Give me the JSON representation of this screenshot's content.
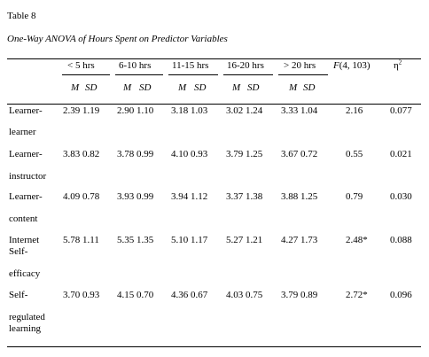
{
  "table": {
    "label": "Table 8",
    "caption": "One-Way ANOVA of Hours Spent on Predictor Variables",
    "groups": [
      "< 5 hrs",
      "6-10 hrs",
      "11-15 hrs",
      "16-20 hrs",
      "> 20 hrs"
    ],
    "f_header_italic": "F",
    "f_header_rest": "(4, 103)",
    "eta_header_symbol": "η",
    "eta_header_sup": "2",
    "sub_m": "M",
    "sub_sd": "SD",
    "rows": [
      {
        "label_lines": [
          "Learner-",
          "learner"
        ],
        "cells": [
          "2.39 1.19",
          "2.90 1.10",
          "3.18 1.03",
          "3.02 1.24",
          "3.33 1.04"
        ],
        "f": "2.16",
        "eta": "0.077"
      },
      {
        "label_lines": [
          "Learner-",
          "instructor"
        ],
        "cells": [
          "3.83 0.82",
          "3.78 0.99",
          "4.10 0.93",
          "3.79 1.25",
          "3.67 0.72"
        ],
        "f": "0.55",
        "eta": "0.021"
      },
      {
        "label_lines": [
          "Learner-",
          "content"
        ],
        "cells": [
          "4.09 0.78",
          "3.93 0.99",
          "3.94 1.12",
          "3.37 1.38",
          "3.88 1.25"
        ],
        "f": "0.79",
        "eta": "0.030"
      },
      {
        "label_lines": [
          "Internet",
          "Self-",
          "efficacy"
        ],
        "cells": [
          "5.78 1.11",
          "5.35 1.35",
          "5.10 1.17",
          "5.27 1.21",
          "4.27 1.73"
        ],
        "f": "2.48*",
        "eta": "0.088"
      },
      {
        "label_lines": [
          "Self-",
          "regulated",
          "learning"
        ],
        "cells": [
          "3.70 0.93",
          "4.15 0.70",
          "4.36 0.67",
          "4.03 0.75",
          "3.79 0.89"
        ],
        "f": "2.72*",
        "eta": "0.096"
      }
    ]
  }
}
